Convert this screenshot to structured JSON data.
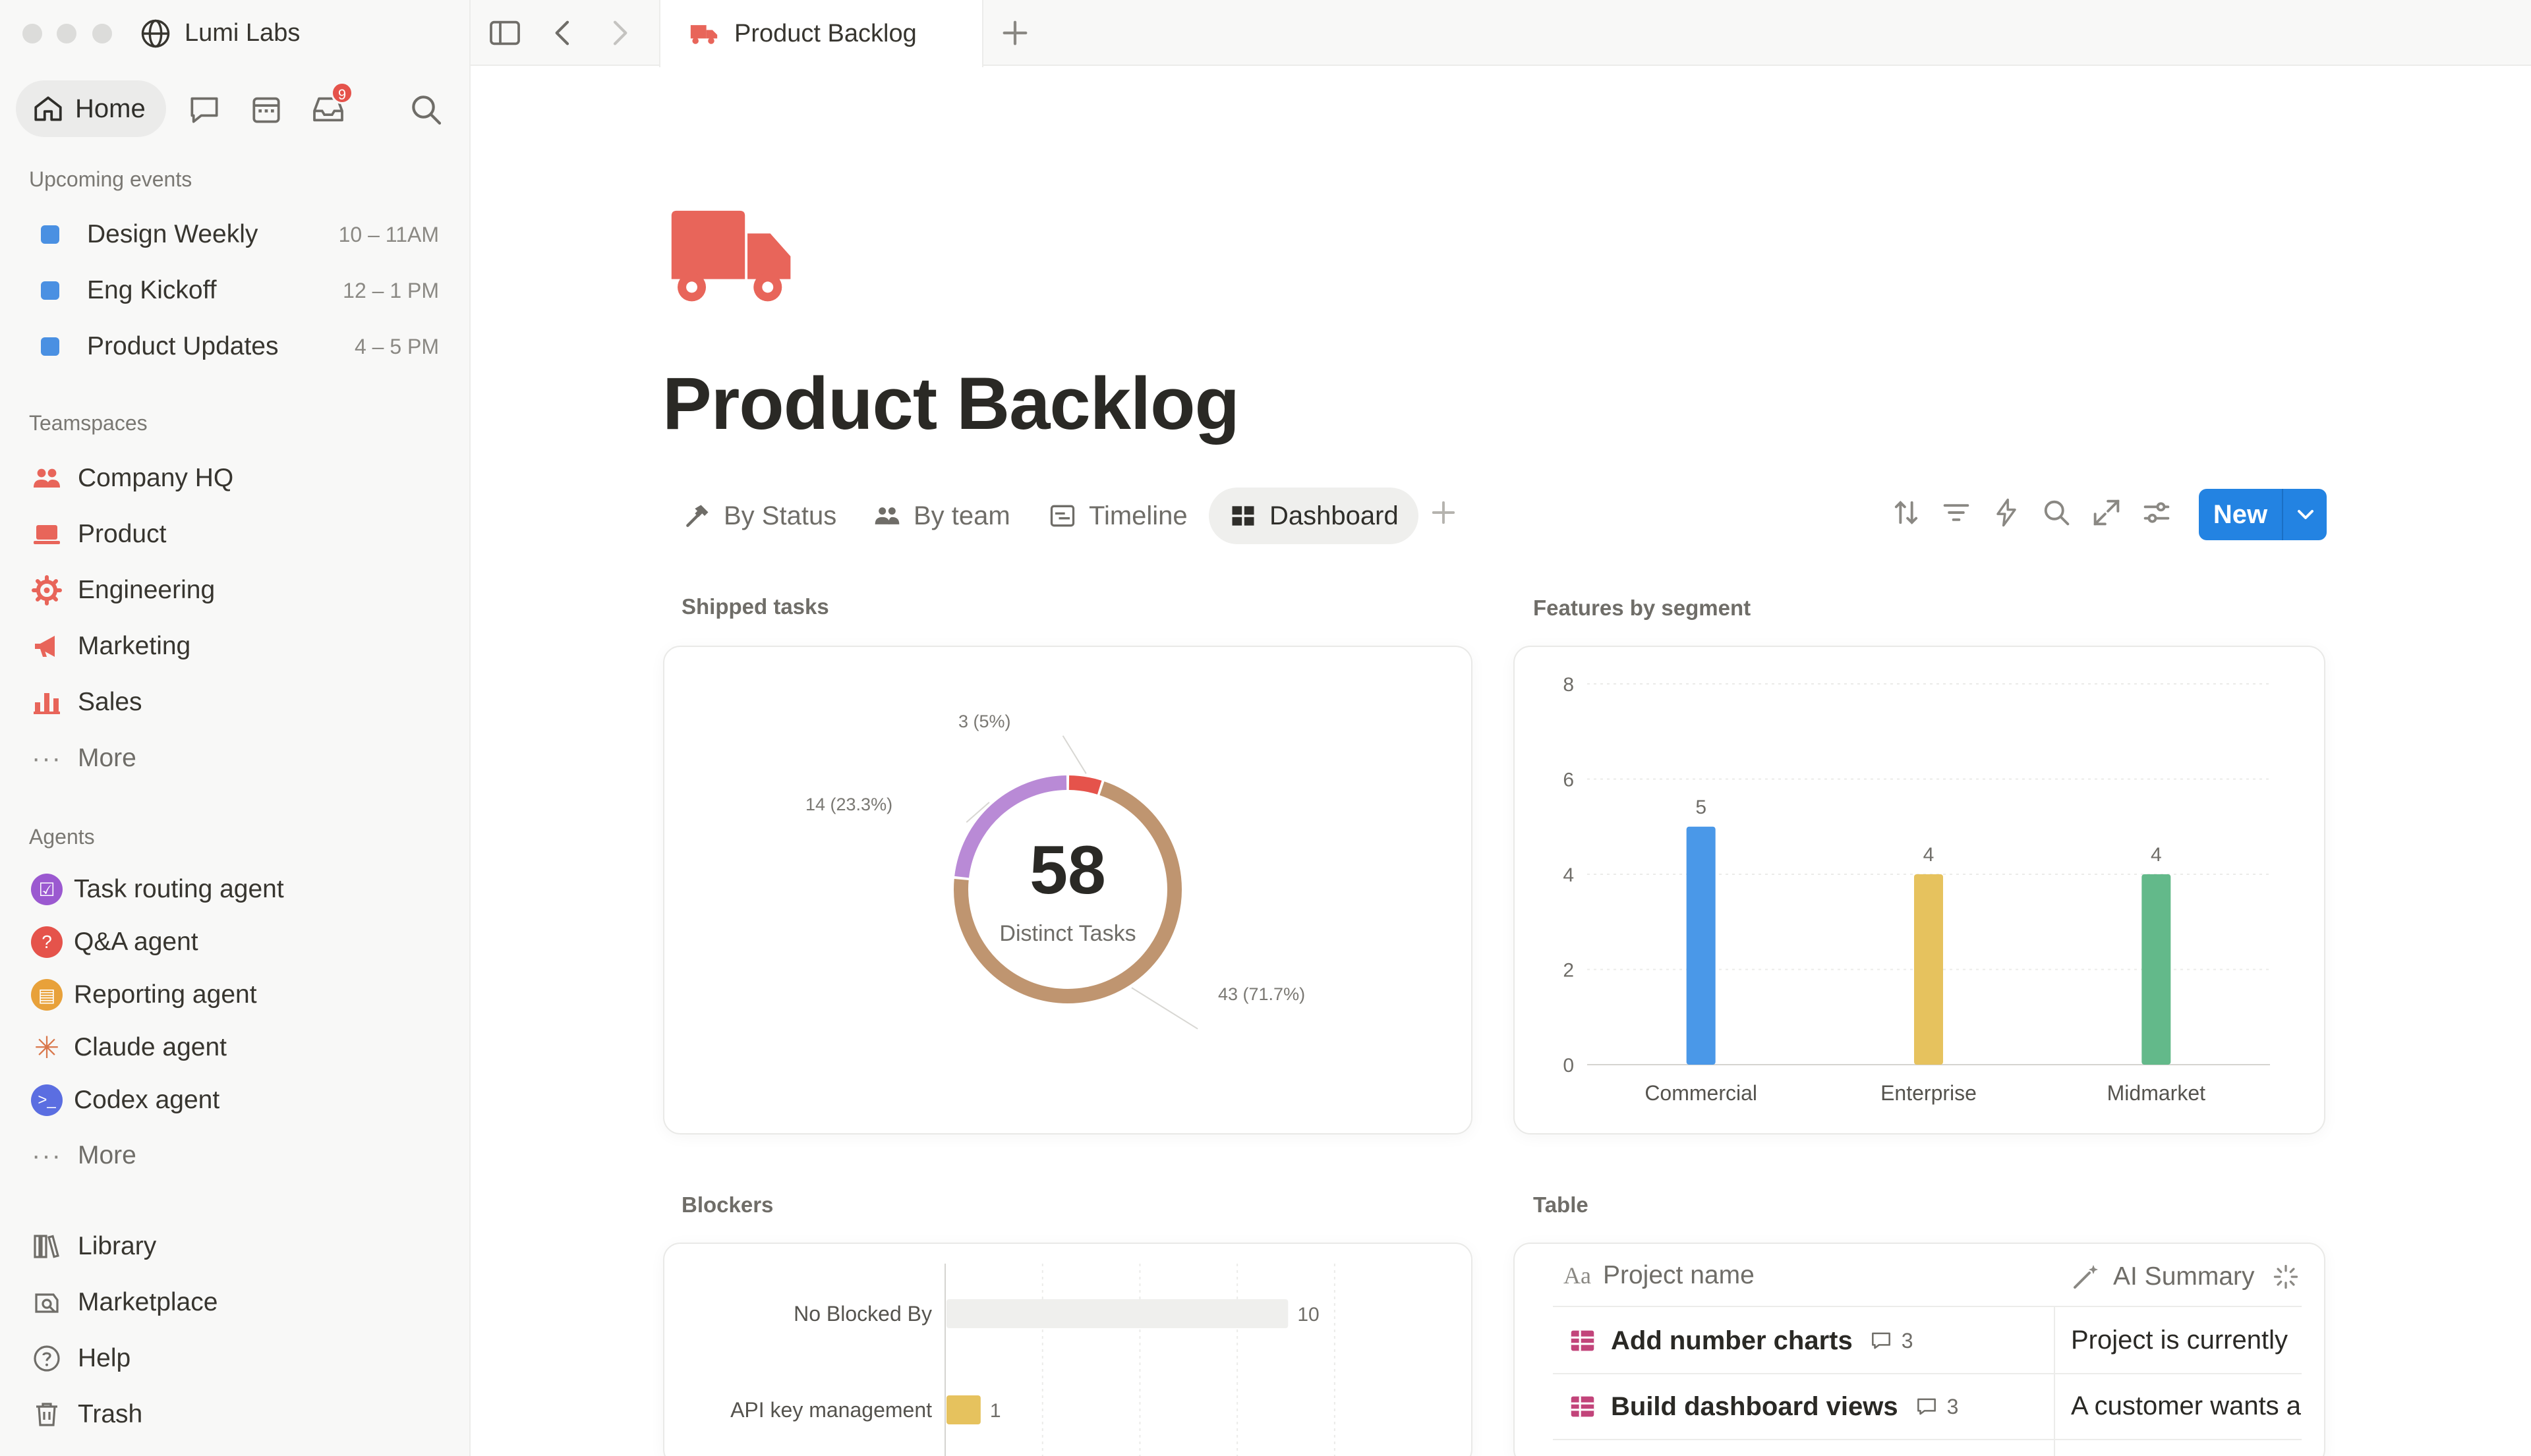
{
  "workspace": {
    "name": "Lumi Labs"
  },
  "sidebar": {
    "home_label": "Home",
    "inbox_count": "9",
    "upcoming_label": "Upcoming events",
    "events": [
      {
        "name": "Design Weekly",
        "time": "10 – 11AM",
        "color": "#4a90e2"
      },
      {
        "name": "Eng Kickoff",
        "time": "12 – 1 PM",
        "color": "#4a90e2"
      },
      {
        "name": "Product Updates",
        "time": "4 – 5 PM",
        "color": "#4a90e2"
      }
    ],
    "teamspaces_label": "Teamspaces",
    "teamspaces": [
      {
        "name": "Company HQ",
        "icon": "people-icon"
      },
      {
        "name": "Product",
        "icon": "laptop-icon"
      },
      {
        "name": "Engineering",
        "icon": "gear-icon"
      },
      {
        "name": "Marketing",
        "icon": "megaphone-icon"
      },
      {
        "name": "Sales",
        "icon": "bar-chart-icon"
      }
    ],
    "more_label": "More",
    "agents_label": "Agents",
    "agents": [
      {
        "name": "Task routing agent",
        "icon": "checkbox-agent-icon",
        "color": "#9b59d0"
      },
      {
        "name": "Q&A agent",
        "icon": "question-agent-icon",
        "color": "#e5534b"
      },
      {
        "name": "Reporting agent",
        "icon": "book-agent-icon",
        "color": "#e8a13a"
      },
      {
        "name": "Claude agent",
        "icon": "claude-sparkle-icon",
        "color": "#d9774b"
      },
      {
        "name": "Codex agent",
        "icon": "codex-terminal-icon",
        "color": "#5b6ee1"
      }
    ],
    "agents_more_label": "More",
    "footer": [
      {
        "name": "Library",
        "icon": "library-icon"
      },
      {
        "name": "Marketplace",
        "icon": "marketplace-icon"
      },
      {
        "name": "Help",
        "icon": "help-icon"
      },
      {
        "name": "Trash",
        "icon": "trash-icon"
      }
    ]
  },
  "topbar": {
    "tab_title": "Product Backlog"
  },
  "page": {
    "title": "Product Backlog",
    "views": [
      {
        "label": "By Status",
        "icon": "hammer-icon"
      },
      {
        "label": "By team",
        "icon": "people-icon"
      },
      {
        "label": "Timeline",
        "icon": "timeline-icon"
      },
      {
        "label": "Dashboard",
        "icon": "dashboard-icon"
      }
    ],
    "new_button": "New",
    "accent_color": "#2383e2",
    "brand_color": "#e8655a"
  },
  "widgets": {
    "shipped_label": "Shipped tasks",
    "features_label": "Features by segment",
    "blockers_label": "Blockers",
    "table_label": "Table"
  },
  "chart_data": [
    {
      "type": "pie",
      "title": "Shipped tasks",
      "center_value": "58",
      "center_label": "Distinct Tasks",
      "slices": [
        {
          "value": 43,
          "label": "43 (71.7%)",
          "color": "#bf9570"
        },
        {
          "value": 14,
          "label": "14 (23.3%)",
          "color": "#b98ad6"
        },
        {
          "value": 3,
          "label": "3 (5%)",
          "color": "#e5534b"
        }
      ]
    },
    {
      "type": "bar",
      "title": "Features by segment",
      "categories": [
        "Commercial",
        "Enterprise",
        "Midmarket"
      ],
      "values": [
        5,
        4,
        4
      ],
      "colors": [
        "#4a98e8",
        "#e6c25e",
        "#63b98a"
      ],
      "ylim": [
        0,
        8
      ],
      "yticks": [
        0,
        2,
        4,
        6,
        8
      ],
      "grid": true
    },
    {
      "type": "bar",
      "orientation": "horizontal",
      "title": "Blockers",
      "categories": [
        "No Blocked By",
        "API key management"
      ],
      "values": [
        10,
        1
      ],
      "colors": [
        "#efefed",
        "#e6c25e"
      ]
    }
  ],
  "table": {
    "columns": [
      "Project name",
      "AI Summary"
    ],
    "rows": [
      {
        "name": "Add number charts",
        "comments": "3",
        "summary": "Project is currently"
      },
      {
        "name": "Build dashboard views",
        "comments": "3",
        "summary": "A customer wants a"
      }
    ]
  }
}
